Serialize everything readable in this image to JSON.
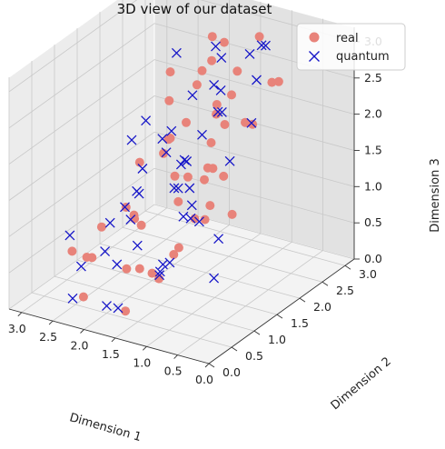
{
  "chart_data": {
    "type": "scatter3d",
    "title": "3D view of our dataset",
    "xlabel": "Dimension 1",
    "ylabel": "Dimension 2",
    "zlabel": "Dimension 3",
    "xlim": [
      0,
      3.2
    ],
    "ylim": [
      0,
      3.2
    ],
    "zlim": [
      0,
      3.2
    ],
    "xticks": [
      "0.0",
      "0.5",
      "1.0",
      "1.5",
      "2.0",
      "2.5",
      "3.0"
    ],
    "yticks": [
      "0.0",
      "0.5",
      "1.0",
      "1.5",
      "2.0",
      "2.5",
      "3.0"
    ],
    "zticks": [
      "0.0",
      "0.5",
      "1.0",
      "1.5",
      "2.0",
      "2.5",
      "3.0"
    ],
    "grid": true,
    "legend_position": "top-right",
    "series": [
      {
        "name": "real",
        "marker": "circle",
        "color": "#e8837a",
        "points": [
          [
            0.2,
            0.3,
            2.0
          ],
          [
            0.3,
            0.5,
            2.4
          ],
          [
            0.5,
            0.6,
            1.6
          ],
          [
            0.6,
            0.8,
            2.2
          ],
          [
            0.4,
            0.9,
            2.8
          ],
          [
            0.8,
            1.0,
            1.9
          ],
          [
            0.9,
            1.4,
            2.6
          ],
          [
            1.1,
            1.2,
            1.2
          ],
          [
            1.2,
            1.7,
            2.0
          ],
          [
            1.0,
            2.0,
            2.9
          ],
          [
            1.4,
            2.1,
            2.3
          ],
          [
            1.5,
            1.6,
            1.5
          ],
          [
            1.7,
            2.4,
            2.7
          ],
          [
            1.8,
            1.8,
            1.0
          ],
          [
            2.0,
            2.6,
            2.4
          ],
          [
            2.1,
            2.0,
            1.7
          ],
          [
            2.3,
            2.9,
            2.0
          ],
          [
            2.4,
            2.3,
            1.3
          ],
          [
            2.6,
            2.7,
            1.8
          ],
          [
            2.8,
            3.0,
            1.1
          ],
          [
            0.3,
            1.8,
            3.0
          ],
          [
            0.7,
            2.5,
            2.6
          ],
          [
            1.3,
            2.9,
            2.9
          ],
          [
            0.9,
            2.2,
            2.1
          ],
          [
            1.6,
            3.0,
            1.6
          ],
          [
            2.2,
            3.1,
            2.6
          ],
          [
            0.5,
            1.2,
            1.4
          ],
          [
            1.0,
            0.6,
            1.0
          ],
          [
            1.4,
            0.4,
            0.8
          ],
          [
            1.9,
            0.8,
            0.5
          ],
          [
            2.3,
            0.4,
            0.2
          ],
          [
            2.6,
            1.0,
            0.4
          ],
          [
            2.9,
            1.3,
            0.2
          ],
          [
            2.5,
            1.8,
            0.6
          ],
          [
            2.8,
            2.2,
            0.4
          ],
          [
            3.0,
            2.6,
            0.9
          ],
          [
            1.6,
            1.1,
            0.3
          ],
          [
            2.0,
            1.5,
            0.1
          ],
          [
            2.2,
            1.2,
            1.1
          ],
          [
            1.2,
            0.9,
            1.9
          ],
          [
            0.7,
            0.3,
            1.3
          ],
          [
            1.8,
            2.8,
            0.9
          ],
          [
            3.1,
            1.9,
            0.3
          ],
          [
            2.7,
            0.7,
            0.6
          ],
          [
            2.4,
            2.8,
            1.5
          ],
          [
            1.7,
            0.5,
            0.1
          ],
          [
            2.9,
            2.5,
            0.1
          ],
          [
            0.8,
            1.6,
            2.8
          ],
          [
            1.5,
            2.4,
            3.0
          ],
          [
            2.0,
            1.9,
            2.7
          ]
        ]
      },
      {
        "name": "quantum",
        "marker": "x",
        "color": "#1515c8",
        "points": [
          [
            0.1,
            0.6,
            2.5
          ],
          [
            0.3,
            0.2,
            1.8
          ],
          [
            0.5,
            0.9,
            1.2
          ],
          [
            0.6,
            0.4,
            2.1
          ],
          [
            0.8,
            1.3,
            2.7
          ],
          [
            1.0,
            1.0,
            1.5
          ],
          [
            1.1,
            1.8,
            2.4
          ],
          [
            1.3,
            1.3,
            1.9
          ],
          [
            1.4,
            2.2,
            2.9
          ],
          [
            1.5,
            1.5,
            1.0
          ],
          [
            1.7,
            2.6,
            2.2
          ],
          [
            1.9,
            2.0,
            1.4
          ],
          [
            2.0,
            2.9,
            2.6
          ],
          [
            2.2,
            2.2,
            1.7
          ],
          [
            2.3,
            2.8,
            1.9
          ],
          [
            2.5,
            2.5,
            1.2
          ],
          [
            2.7,
            3.0,
            2.3
          ],
          [
            2.9,
            2.6,
            1.5
          ],
          [
            3.0,
            3.1,
            1.0
          ],
          [
            0.4,
            1.6,
            3.1
          ],
          [
            0.9,
            2.4,
            3.1
          ],
          [
            1.2,
            2.9,
            2.8
          ],
          [
            1.6,
            3.1,
            2.5
          ],
          [
            2.1,
            3.0,
            2.0
          ],
          [
            0.7,
            1.9,
            2.3
          ],
          [
            1.0,
            0.3,
            0.9
          ],
          [
            1.3,
            0.7,
            0.6
          ],
          [
            1.6,
            0.2,
            0.3
          ],
          [
            1.8,
            0.9,
            0.8
          ],
          [
            2.0,
            0.5,
            0.1
          ],
          [
            2.2,
            1.0,
            0.4
          ],
          [
            2.4,
            0.3,
            0.2
          ],
          [
            2.6,
            1.4,
            0.7
          ],
          [
            2.7,
            0.9,
            0.3
          ],
          [
            2.9,
            1.7,
            0.1
          ],
          [
            3.1,
            1.2,
            0.5
          ],
          [
            2.8,
            2.0,
            0.6
          ],
          [
            3.0,
            2.4,
            0.2
          ],
          [
            2.5,
            1.9,
            0.9
          ],
          [
            1.9,
            1.6,
            0.2
          ],
          [
            1.5,
            1.2,
            0.5
          ],
          [
            2.3,
            2.4,
            0.8
          ],
          [
            2.6,
            2.9,
            0.5
          ],
          [
            3.1,
            2.8,
            0.7
          ],
          [
            0.8,
            0.7,
            1.5
          ],
          [
            1.7,
            1.8,
            1.6
          ],
          [
            2.1,
            1.3,
            1.3
          ],
          [
            0.5,
            0.8,
            0.7
          ],
          [
            1.2,
            1.5,
            2.2
          ],
          [
            2.4,
            1.6,
            1.8
          ]
        ]
      }
    ]
  }
}
